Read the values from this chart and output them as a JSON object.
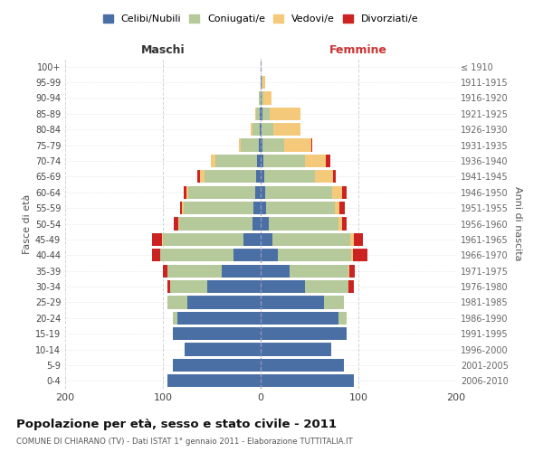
{
  "age_groups": [
    "0-4",
    "5-9",
    "10-14",
    "15-19",
    "20-24",
    "25-29",
    "30-34",
    "35-39",
    "40-44",
    "45-49",
    "50-54",
    "55-59",
    "60-64",
    "65-69",
    "70-74",
    "75-79",
    "80-84",
    "85-89",
    "90-94",
    "95-99",
    "100+"
  ],
  "birth_years": [
    "2006-2010",
    "2001-2005",
    "1996-2000",
    "1991-1995",
    "1986-1990",
    "1981-1985",
    "1976-1980",
    "1971-1975",
    "1966-1970",
    "1961-1965",
    "1956-1960",
    "1951-1955",
    "1946-1950",
    "1941-1945",
    "1936-1940",
    "1931-1935",
    "1926-1930",
    "1921-1925",
    "1916-1920",
    "1911-1915",
    "≤ 1910"
  ],
  "male": {
    "celibi": [
      95,
      90,
      78,
      90,
      85,
      75,
      55,
      40,
      28,
      18,
      8,
      7,
      6,
      5,
      4,
      2,
      1,
      1,
      0,
      0,
      0
    ],
    "coniugati": [
      0,
      0,
      0,
      0,
      5,
      20,
      38,
      55,
      75,
      82,
      75,
      72,
      68,
      52,
      42,
      18,
      7,
      4,
      2,
      0,
      0
    ],
    "vedovi": [
      0,
      0,
      0,
      0,
      0,
      0,
      0,
      0,
      0,
      1,
      1,
      2,
      2,
      5,
      5,
      2,
      2,
      1,
      0,
      0,
      0
    ],
    "divorziati": [
      0,
      0,
      0,
      0,
      0,
      0,
      2,
      5,
      8,
      10,
      5,
      1,
      3,
      3,
      0,
      0,
      0,
      0,
      0,
      0,
      0
    ]
  },
  "female": {
    "nubili": [
      95,
      85,
      72,
      88,
      80,
      65,
      45,
      30,
      18,
      12,
      8,
      6,
      5,
      4,
      3,
      2,
      1,
      2,
      1,
      1,
      0
    ],
    "coniugate": [
      0,
      0,
      0,
      0,
      8,
      20,
      45,
      60,
      75,
      80,
      72,
      70,
      68,
      52,
      42,
      22,
      12,
      7,
      2,
      1,
      0
    ],
    "vedove": [
      0,
      0,
      0,
      0,
      0,
      0,
      0,
      1,
      1,
      3,
      3,
      5,
      10,
      18,
      22,
      28,
      28,
      32,
      8,
      3,
      0
    ],
    "divorziate": [
      0,
      0,
      0,
      0,
      0,
      0,
      5,
      5,
      15,
      10,
      5,
      5,
      5,
      3,
      4,
      1,
      0,
      0,
      0,
      0,
      0
    ]
  },
  "colors": {
    "celibi": "#4a6fa5",
    "coniugati": "#b5c99a",
    "vedovi": "#f5c97a",
    "divorziati": "#cc2222"
  },
  "title": "Popolazione per età, sesso e stato civile - 2011",
  "subtitle": "COMUNE DI CHIARANO (TV) - Dati ISTAT 1° gennaio 2011 - Elaborazione TUTTITALIA.IT",
  "xlabel_left": "Maschi",
  "xlabel_right": "Femmine",
  "ylabel_left": "Fasce di età",
  "ylabel_right": "Anni di nascita",
  "xlim": 200,
  "background_color": "#ffffff",
  "grid_color": "#cccccc",
  "legend_labels": [
    "Celibi/Nubili",
    "Coniugati/e",
    "Vedovi/e",
    "Divorziati/e"
  ]
}
